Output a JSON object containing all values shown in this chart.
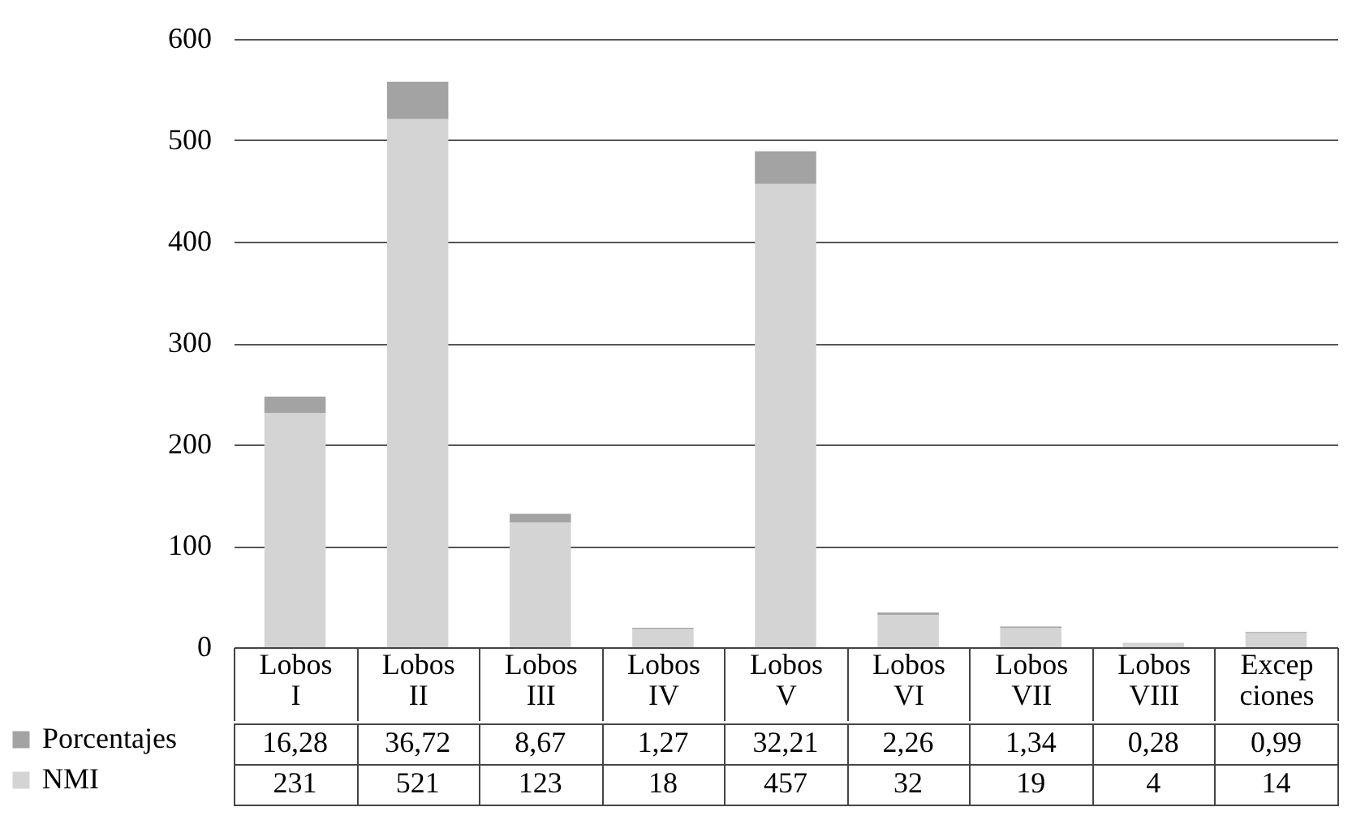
{
  "chart_data": {
    "type": "bar",
    "stacked": true,
    "categories": [
      "Lobos\nI",
      "Lobos\nII",
      "Lobos\nIII",
      "Lobos\nIV",
      "Lobos\nV",
      "Lobos\nVI",
      "Lobos\nVII",
      "Lobos\nVIII",
      "Excep\nciones"
    ],
    "series": [
      {
        "name": "NMI",
        "color": "#d4d4d4",
        "values": [
          231,
          521,
          123,
          18,
          457,
          32,
          19,
          4,
          14
        ],
        "value_labels": [
          "231",
          "521",
          "123",
          "18",
          "457",
          "32",
          "19",
          "4",
          "14"
        ]
      },
      {
        "name": "Porcentajes",
        "color": "#a3a3a3",
        "values": [
          16.28,
          36.72,
          8.67,
          1.27,
          32.21,
          2.26,
          1.34,
          0.28,
          0.99
        ],
        "value_labels": [
          "16,28",
          "36,72",
          "8,67",
          "1,27",
          "32,21",
          "2,26",
          "1,34",
          "0,28",
          "0,99"
        ]
      }
    ],
    "ylim": [
      0,
      600
    ],
    "yticks": [
      0,
      100,
      200,
      300,
      400,
      500,
      600
    ],
    "grid": "y",
    "legend": "bottom left"
  }
}
